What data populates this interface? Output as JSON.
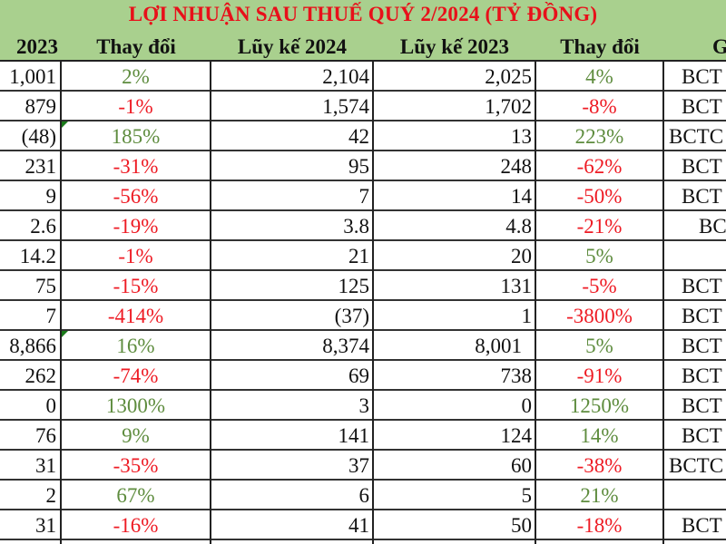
{
  "title": "LỢI NHUẬN SAU THUẾ QUÝ 2/2024 (TỶ ĐỒNG)",
  "colors": {
    "header_bg": "#a9d08e",
    "title_red": "#e8101a",
    "positive_green": "#5e8c3e",
    "negative_red": "#ee1b24"
  },
  "headers": {
    "q2_2023": "2023",
    "change_q": "Thay đổi",
    "ytd_2024": "Lũy kế 2024",
    "ytd_2023": "Lũy kế 2023",
    "change_ytd": "Thay đổi",
    "note": "G"
  },
  "rows": [
    {
      "q2_2023": "1,001",
      "change_q": "2%",
      "change_q_sign": "pos",
      "ytd_2024": "2,104",
      "ytd_2023": "2,025",
      "change_ytd": "4%",
      "change_ytd_sign": "pos",
      "note": "BCT"
    },
    {
      "q2_2023": "879",
      "change_q": "-1%",
      "change_q_sign": "neg",
      "ytd_2024": "1,574",
      "ytd_2023": "1,702",
      "change_ytd": "-8%",
      "change_ytd_sign": "neg",
      "note": "BCT"
    },
    {
      "q2_2023": "(48)",
      "change_q": "185%",
      "change_q_sign": "pos",
      "ytd_2024": "42",
      "ytd_2023": "13",
      "change_ytd": "223%",
      "change_ytd_sign": "pos",
      "note": "BCTC"
    },
    {
      "q2_2023": "231",
      "change_q": "-31%",
      "change_q_sign": "neg",
      "ytd_2024": "95",
      "ytd_2023": "248",
      "change_ytd": "-62%",
      "change_ytd_sign": "neg",
      "note": "BCT"
    },
    {
      "q2_2023": "9",
      "change_q": "-56%",
      "change_q_sign": "neg",
      "ytd_2024": "7",
      "ytd_2023": "14",
      "change_ytd": "-50%",
      "change_ytd_sign": "neg",
      "note": "BCT"
    },
    {
      "q2_2023": "2.6",
      "change_q": "-19%",
      "change_q_sign": "neg",
      "ytd_2024": "3.8",
      "ytd_2023": "4.8",
      "change_ytd": "-21%",
      "change_ytd_sign": "neg",
      "note": "BC"
    },
    {
      "q2_2023": "14.2",
      "change_q": "-1%",
      "change_q_sign": "neg",
      "ytd_2024": "21",
      "ytd_2023": "20",
      "change_ytd": "5%",
      "change_ytd_sign": "pos",
      "note": ""
    },
    {
      "q2_2023": "75",
      "change_q": "-15%",
      "change_q_sign": "neg",
      "ytd_2024": "125",
      "ytd_2023": "131",
      "change_ytd": "-5%",
      "change_ytd_sign": "neg",
      "note": "BCT"
    },
    {
      "q2_2023": "7",
      "change_q": "-414%",
      "change_q_sign": "neg",
      "ytd_2024": "(37)",
      "ytd_2023": "1",
      "change_ytd": "-3800%",
      "change_ytd_sign": "neg",
      "note": "BCT"
    },
    {
      "q2_2023": "8,866",
      "change_q": "16%",
      "change_q_sign": "pos",
      "ytd_2024": "8,374",
      "ytd_2023": "8,001",
      "change_ytd": "5%",
      "change_ytd_sign": "pos",
      "note": "BCT"
    },
    {
      "q2_2023": "262",
      "change_q": "-74%",
      "change_q_sign": "neg",
      "ytd_2024": "69",
      "ytd_2023": "738",
      "change_ytd": "-91%",
      "change_ytd_sign": "neg",
      "note": "BCT"
    },
    {
      "q2_2023": "0",
      "change_q": "1300%",
      "change_q_sign": "pos",
      "ytd_2024": "3",
      "ytd_2023": "0",
      "change_ytd": "1250%",
      "change_ytd_sign": "pos",
      "note": "BCT"
    },
    {
      "q2_2023": "76",
      "change_q": "9%",
      "change_q_sign": "pos",
      "ytd_2024": "141",
      "ytd_2023": "124",
      "change_ytd": "14%",
      "change_ytd_sign": "pos",
      "note": "BCT"
    },
    {
      "q2_2023": "31",
      "change_q": "-35%",
      "change_q_sign": "neg",
      "ytd_2024": "37",
      "ytd_2023": "60",
      "change_ytd": "-38%",
      "change_ytd_sign": "neg",
      "note": "BCTC"
    },
    {
      "q2_2023": "2",
      "change_q": "67%",
      "change_q_sign": "pos",
      "ytd_2024": "6",
      "ytd_2023": "5",
      "change_ytd": "21%",
      "change_ytd_sign": "pos",
      "note": ""
    },
    {
      "q2_2023": "31",
      "change_q": "-16%",
      "change_q_sign": "neg",
      "ytd_2024": "41",
      "ytd_2023": "50",
      "change_ytd": "-18%",
      "change_ytd_sign": "neg",
      "note": "BCT"
    }
  ]
}
